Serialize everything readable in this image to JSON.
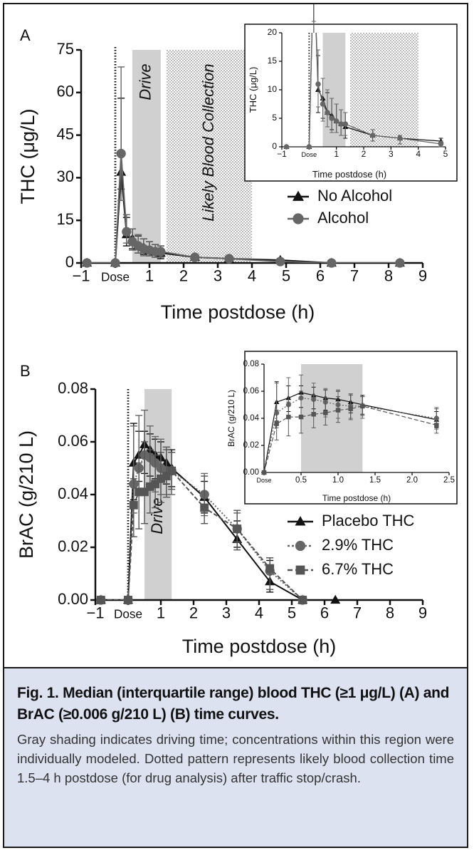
{
  "caption": {
    "title": "Fig. 1.  Median (interquartile range) blood THC (≥1 μg/L) (A) and BrAC (≥0.006 g/210 L) (B) time curves.",
    "body": "Gray shading indicates driving time; concentrations within this region were individually modeled. Dotted pattern represents likely blood collection time 1.5–4 h postdose (for drug analysis) after traffic stop/crash."
  },
  "colors": {
    "drive_shade": "#d0d0d0",
    "series_black": "#111111",
    "series_gray": "#666666",
    "caption_bg": "#dde2f1"
  },
  "chart_data": [
    {
      "id": "A-main",
      "panel_label": "A",
      "type": "line",
      "xlabel": "Time postdose (h)",
      "ylabel": "THC (μg/L)",
      "xlim": [
        -1,
        9
      ],
      "ylim": [
        0,
        75
      ],
      "xticks": [
        -1,
        0,
        1,
        2,
        3,
        4,
        5,
        6,
        7,
        8,
        9
      ],
      "xtick_labels": [
        "−1",
        "Dose",
        "1",
        "2",
        "3",
        "4",
        "5",
        "6",
        "7",
        "8",
        "9"
      ],
      "yticks": [
        0,
        15,
        30,
        45,
        60,
        75
      ],
      "dose_line_x": 0,
      "regions": [
        {
          "kind": "drive",
          "x0": 0.5,
          "x1": 1.33,
          "label": "Drive"
        },
        {
          "kind": "collection",
          "x0": 1.5,
          "x1": 4.0,
          "label": "Likely Blood Collection"
        }
      ],
      "legend_position": "middle-right",
      "series": [
        {
          "name": "No Alcohol",
          "marker": "triangle",
          "color": "#111111",
          "x": [
            -0.83,
            0,
            0.17,
            0.33,
            0.5,
            0.67,
            0.83,
            1.0,
            1.17,
            1.33,
            2.33,
            3.33,
            4.83,
            6.33,
            8.33
          ],
          "y": [
            0,
            0,
            32,
            10,
            8.5,
            6,
            5.5,
            4.5,
            4,
            3.5,
            2,
            1.5,
            1,
            0,
            0
          ],
          "err_low": [
            0,
            0,
            26,
            6,
            5,
            3.5,
            3,
            2.5,
            2,
            1.5,
            1,
            0.5,
            0,
            0,
            0
          ],
          "err_high": [
            0,
            0,
            58,
            16,
            12,
            9.5,
            8.5,
            7.5,
            6.5,
            6,
            3,
            2,
            1.5,
            0,
            0
          ]
        },
        {
          "name": "Alcohol",
          "marker": "circle",
          "color": "#666666",
          "x": [
            -0.83,
            0,
            0.17,
            0.33,
            0.5,
            0.67,
            0.83,
            1.0,
            1.17,
            1.33,
            2.33,
            3.33,
            4.83,
            6.33,
            8.33
          ],
          "y": [
            0,
            0,
            38.5,
            11,
            7.5,
            6,
            5,
            4.5,
            4,
            4,
            2,
            1.5,
            0.5,
            0,
            0
          ],
          "err_low": [
            0,
            0,
            22,
            7,
            4.5,
            3.5,
            2.5,
            2.5,
            2,
            2,
            1,
            0.5,
            0,
            0,
            0
          ],
          "err_high": [
            0,
            0,
            69,
            17,
            12,
            10,
            8.5,
            7.5,
            6.5,
            6,
            3,
            2,
            1,
            0,
            0
          ]
        }
      ]
    },
    {
      "id": "A-inset",
      "type": "line",
      "xlabel": "Time postdose (h)",
      "ylabel": "THC (μg/L)",
      "xlim": [
        -1,
        5
      ],
      "ylim": [
        0,
        20
      ],
      "xticks": [
        -1,
        0,
        1,
        2,
        3,
        4,
        5
      ],
      "xtick_labels": [
        "−1",
        "Dose",
        "1",
        "2",
        "3",
        "4",
        "5"
      ],
      "yticks": [
        0,
        5,
        10,
        15,
        20
      ],
      "dose_line_x": 0,
      "regions": [
        {
          "kind": "drive",
          "x0": 0.5,
          "x1": 1.33
        },
        {
          "kind": "collection",
          "x0": 1.5,
          "x1": 4.0
        }
      ]
    },
    {
      "id": "B-main",
      "panel_label": "B",
      "type": "line",
      "xlabel": "Time postdose (h)",
      "ylabel": "BrAC (g/210 L)",
      "xlim": [
        -1,
        9
      ],
      "ylim": [
        0,
        0.08
      ],
      "xticks": [
        -1,
        0,
        1,
        2,
        3,
        4,
        5,
        6,
        7,
        8,
        9
      ],
      "xtick_labels": [
        "−1",
        "Dose",
        "1",
        "2",
        "3",
        "4",
        "5",
        "6",
        "7",
        "8",
        "9"
      ],
      "yticks": [
        0,
        0.02,
        0.04,
        0.06,
        0.08
      ],
      "ytick_labels": [
        "0.00",
        "0.02",
        "0.04",
        "0.06",
        "0.08"
      ],
      "dose_line_x": 0,
      "regions": [
        {
          "kind": "drive",
          "x0": 0.5,
          "x1": 1.33,
          "label": "Drive"
        }
      ],
      "legend_position": "middle-right",
      "series": [
        {
          "name": "Placebo THC",
          "marker": "triangle",
          "color": "#111111",
          "dash": "solid",
          "x": [
            -0.83,
            0,
            0.17,
            0.33,
            0.5,
            0.67,
            0.83,
            1.0,
            1.17,
            1.33,
            2.33,
            3.33,
            4.33,
            5.33,
            6.33
          ],
          "y": [
            0,
            0,
            0.052,
            0.055,
            0.059,
            0.057,
            0.055,
            0.054,
            0.052,
            0.05,
            0.039,
            0.023,
            0.007,
            0,
            0
          ],
          "err_low": [
            0,
            0,
            0.038,
            0.045,
            0.048,
            0.047,
            0.046,
            0.045,
            0.044,
            0.043,
            0.033,
            0.02,
            0.003,
            0,
            0
          ],
          "err_high": [
            0,
            0,
            0.067,
            0.064,
            0.064,
            0.063,
            0.061,
            0.06,
            0.058,
            0.057,
            0.045,
            0.03,
            0.015,
            0,
            0
          ]
        },
        {
          "name": "2.9% THC",
          "marker": "circle",
          "color": "#666666",
          "dash": "dotted",
          "x": [
            -0.83,
            0,
            0.17,
            0.33,
            0.5,
            0.67,
            0.83,
            1.0,
            1.17,
            1.33,
            2.33,
            3.33,
            4.33,
            5.33
          ],
          "y": [
            0,
            0,
            0.044,
            0.05,
            0.055,
            0.054,
            0.052,
            0.05,
            0.049,
            0.049,
            0.04,
            0.027,
            0.011,
            0
          ],
          "err_low": [
            0,
            0,
            0.033,
            0.04,
            0.041,
            0.042,
            0.041,
            0.04,
            0.04,
            0.04,
            0.032,
            0.022,
            0.004,
            0
          ],
          "err_high": [
            0,
            0,
            0.066,
            0.07,
            0.072,
            0.066,
            0.062,
            0.061,
            0.058,
            0.056,
            0.048,
            0.033,
            0.016,
            0
          ]
        },
        {
          "name": "6.7% THC",
          "marker": "square",
          "color": "#555555",
          "dash": "dashed",
          "x": [
            -0.83,
            0,
            0.17,
            0.33,
            0.5,
            0.67,
            0.83,
            1.0,
            1.17,
            1.33,
            2.33,
            3.33,
            4.33,
            5.33
          ],
          "y": [
            0,
            0,
            0.036,
            0.041,
            0.041,
            0.043,
            0.044,
            0.046,
            0.047,
            0.049,
            0.035,
            0.027,
            0.012,
            0
          ],
          "err_low": [
            0,
            0,
            0.024,
            0.027,
            0.029,
            0.033,
            0.035,
            0.037,
            0.039,
            0.042,
            0.029,
            0.019,
            0.004,
            0
          ],
          "err_high": [
            0,
            0,
            0.046,
            0.052,
            0.06,
            0.057,
            0.055,
            0.056,
            0.057,
            0.056,
            0.047,
            0.034,
            0.016,
            0
          ]
        }
      ]
    },
    {
      "id": "B-inset",
      "type": "line",
      "xlabel": "Time postdose (h)",
      "ylabel": "BrAC (g/210 L)",
      "xlim": [
        0,
        2.5
      ],
      "ylim": [
        0,
        0.08
      ],
      "xticks": [
        0,
        0.5,
        1.0,
        1.5,
        2.0,
        2.5
      ],
      "xtick_labels": [
        "Dose",
        "0.5",
        "1.0",
        "1.5",
        "2.0",
        "2.5"
      ],
      "yticks": [
        0,
        0.02,
        0.04,
        0.06,
        0.08
      ],
      "ytick_labels": [
        "0.00",
        "0.02",
        "0.04",
        "0.06",
        "0.08"
      ],
      "regions": [
        {
          "kind": "drive",
          "x0": 0.5,
          "x1": 1.33
        }
      ]
    }
  ]
}
